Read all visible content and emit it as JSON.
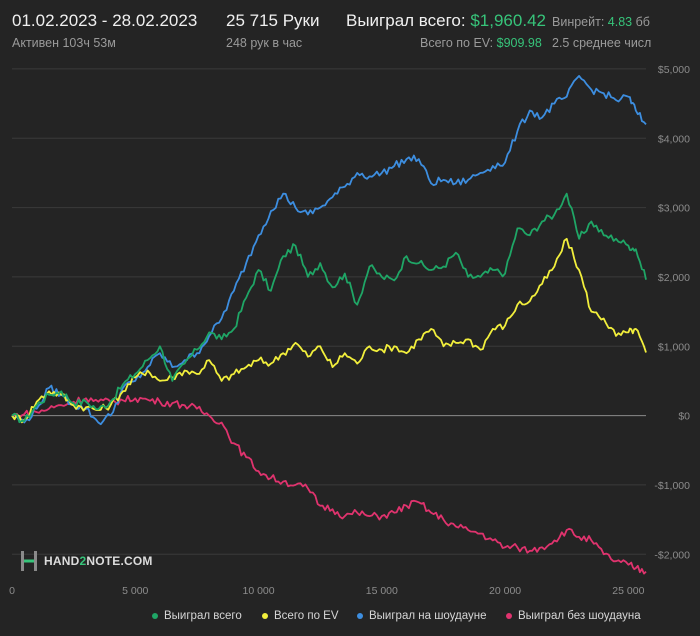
{
  "header": {
    "date_range": "01.02.2023 - 28.02.2023",
    "active": "Активен 103ч 53м",
    "hands": "25 715 Руки",
    "hands_per_hour": "248 рук в час",
    "won_total_label": "Выиграл всего:",
    "won_total_value": "$1,960.42",
    "ev_label": "Всего по EV:",
    "ev_value": "$909.98",
    "winrate_label": "Винрейт:",
    "winrate_value": "4.83",
    "winrate_unit": "бб",
    "avg_label": "2.5 среднее числ"
  },
  "logo": {
    "text_pre": "HAND",
    "text_accent": "2",
    "text_post": "NOTE.COM"
  },
  "colors": {
    "background": "#242424",
    "grid": "#3a3a3a",
    "zero_line": "#8a8a8a",
    "won_total": "#1fa666",
    "ev": "#f2ef3c",
    "showdown": "#3d8ee0",
    "non_showdown": "#e0336e",
    "accent_green": "#37c47a"
  },
  "chart_data": {
    "type": "line",
    "xlim": [
      0,
      25715
    ],
    "ylim": [
      -2400,
      5100
    ],
    "x_ticks": [
      0,
      5000,
      10000,
      15000,
      20000,
      25000
    ],
    "x_tick_labels": [
      "0",
      "5 000",
      "10 000",
      "15 000",
      "20 000",
      "25 000"
    ],
    "y_ticks": [
      5000,
      4000,
      3000,
      2000,
      1000,
      0,
      -1000,
      -2000
    ],
    "y_tick_labels": [
      "$5,000",
      "$4,000",
      "$3,000",
      "$2,000",
      "$1,000",
      "$0",
      "-$1,000",
      "-$2,000"
    ],
    "legend_position": "bottom",
    "series": [
      {
        "name": "Выиграл всего",
        "color": "#1fa666",
        "x": [
          0,
          500,
          1000,
          1500,
          2000,
          2500,
          3000,
          3500,
          4000,
          4500,
          5000,
          5500,
          6000,
          6500,
          7000,
          7500,
          8000,
          8500,
          9000,
          9500,
          10000,
          10500,
          11000,
          11500,
          12000,
          12500,
          13000,
          13500,
          14000,
          14500,
          15000,
          15500,
          16000,
          16500,
          17000,
          17500,
          18000,
          18500,
          19000,
          19500,
          20000,
          20500,
          21000,
          21500,
          22000,
          22500,
          23000,
          23500,
          24000,
          24500,
          25000,
          25300,
          25715
        ],
        "values": [
          0,
          -80,
          150,
          300,
          350,
          180,
          200,
          90,
          200,
          450,
          600,
          800,
          1000,
          500,
          750,
          950,
          1200,
          1100,
          1250,
          1700,
          2100,
          1800,
          2300,
          2450,
          2000,
          2200,
          1850,
          2050,
          1600,
          2150,
          2000,
          1950,
          2300,
          2200,
          2100,
          2150,
          2350,
          2000,
          2000,
          2100,
          2050,
          2700,
          2600,
          2800,
          2900,
          3200,
          2550,
          2800,
          2600,
          2550,
          2450,
          2400,
          1960
        ]
      },
      {
        "name": "Всего по EV",
        "color": "#f2ef3c",
        "x": [
          0,
          500,
          1000,
          1500,
          2000,
          2500,
          3000,
          3500,
          4000,
          4500,
          5000,
          5500,
          6000,
          6500,
          7000,
          7500,
          8000,
          8500,
          9000,
          9500,
          10000,
          10500,
          11000,
          11500,
          12000,
          12500,
          13000,
          13500,
          14000,
          14500,
          15000,
          15500,
          16000,
          16500,
          17000,
          17500,
          18000,
          18500,
          19000,
          19500,
          20000,
          20500,
          21000,
          21500,
          22000,
          22500,
          23000,
          23500,
          24000,
          24500,
          25000,
          25300,
          25715
        ],
        "values": [
          0,
          -60,
          200,
          350,
          300,
          150,
          120,
          80,
          150,
          350,
          550,
          650,
          500,
          550,
          650,
          600,
          800,
          500,
          600,
          700,
          800,
          750,
          900,
          1050,
          850,
          1000,
          700,
          900,
          750,
          1000,
          950,
          1000,
          900,
          1100,
          1250,
          1000,
          1050,
          1100,
          950,
          1250,
          1300,
          1600,
          1650,
          1900,
          2150,
          2550,
          2100,
          1500,
          1400,
          1150,
          1200,
          1250,
          910
        ]
      },
      {
        "name": "Выиграл на шоудауне",
        "color": "#3d8ee0",
        "x": [
          0,
          500,
          1000,
          1500,
          2000,
          2500,
          3000,
          3500,
          4000,
          4500,
          5000,
          5500,
          6000,
          6500,
          7000,
          7500,
          8000,
          8500,
          9000,
          9500,
          10000,
          10500,
          11000,
          11500,
          12000,
          12500,
          13000,
          13500,
          14000,
          14500,
          15000,
          15500,
          16000,
          16500,
          17000,
          17500,
          18000,
          18500,
          19000,
          19500,
          20000,
          20500,
          21000,
          21500,
          22000,
          22500,
          23000,
          23500,
          24000,
          24500,
          25000,
          25300,
          25715
        ],
        "values": [
          0,
          -100,
          100,
          400,
          300,
          150,
          100,
          -100,
          0,
          400,
          500,
          700,
          900,
          700,
          800,
          900,
          1150,
          1400,
          1800,
          2200,
          2600,
          2950,
          3200,
          3000,
          2900,
          3000,
          3150,
          3300,
          3500,
          3450,
          3500,
          3600,
          3700,
          3700,
          3350,
          3400,
          3350,
          3400,
          3500,
          3600,
          3650,
          4100,
          4400,
          4300,
          4500,
          4600,
          4900,
          4700,
          4650,
          4550,
          4600,
          4400,
          4200
        ]
      },
      {
        "name": "Выиграл без шоудауна",
        "color": "#e0336e",
        "x": [
          0,
          500,
          1000,
          1500,
          2000,
          2500,
          3000,
          3500,
          4000,
          4500,
          5000,
          5500,
          6000,
          6500,
          7000,
          7500,
          8000,
          8500,
          9000,
          9500,
          10000,
          10500,
          11000,
          11500,
          12000,
          12500,
          13000,
          13500,
          14000,
          14500,
          15000,
          15500,
          16000,
          16500,
          17000,
          17500,
          18000,
          18500,
          19000,
          19500,
          20000,
          20500,
          21000,
          21500,
          22000,
          22500,
          23000,
          23500,
          24000,
          24500,
          25000,
          25300,
          25715
        ],
        "values": [
          0,
          20,
          50,
          100,
          150,
          200,
          250,
          200,
          200,
          220,
          250,
          230,
          200,
          180,
          150,
          100,
          0,
          -100,
          -400,
          -600,
          -800,
          -900,
          -950,
          -1000,
          -1050,
          -1300,
          -1350,
          -1450,
          -1400,
          -1450,
          -1450,
          -1400,
          -1300,
          -1250,
          -1400,
          -1500,
          -1600,
          -1650,
          -1700,
          -1800,
          -1900,
          -1900,
          -1950,
          -1900,
          -1800,
          -1650,
          -1750,
          -1800,
          -2000,
          -2100,
          -2150,
          -2200,
          -2250
        ]
      }
    ]
  }
}
